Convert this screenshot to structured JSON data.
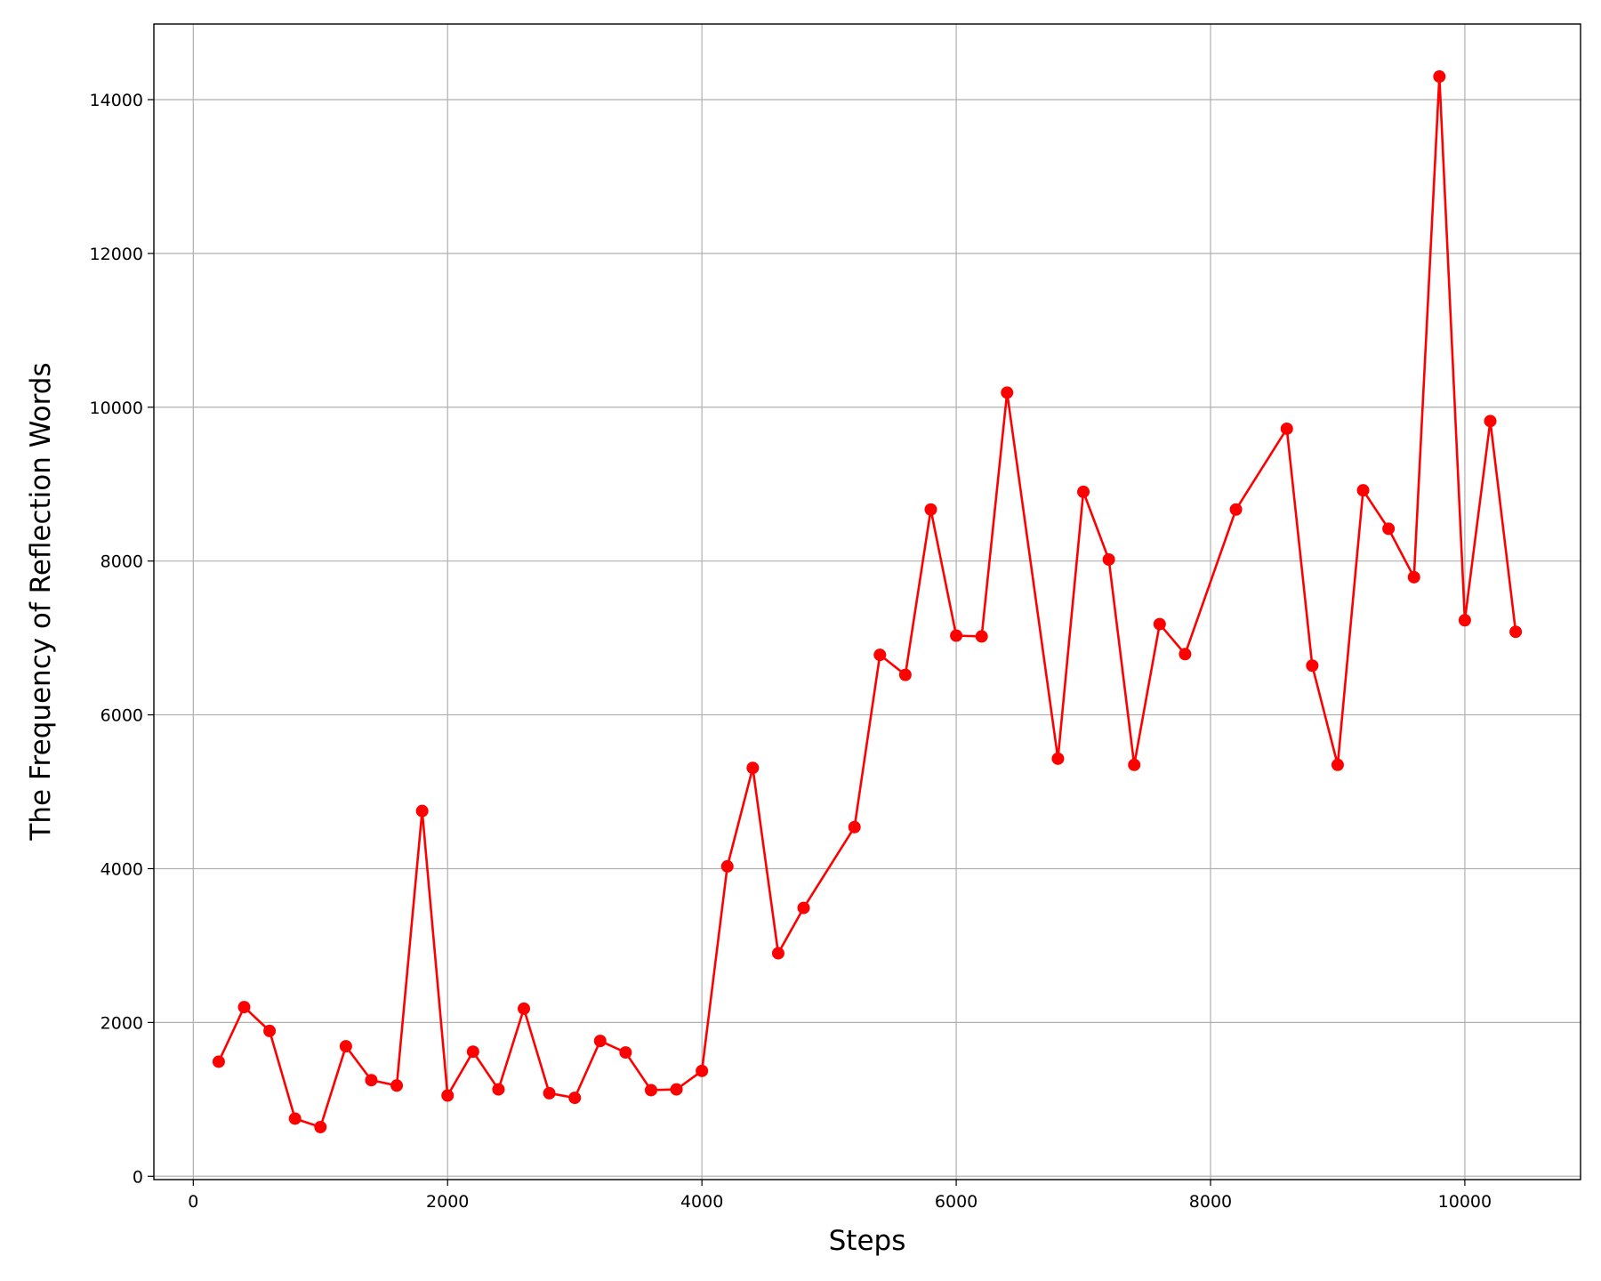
{
  "chart_data": {
    "type": "line",
    "x_label": "Steps",
    "y_label": "The Frequency of Reflection Words",
    "x": [
      200,
      400,
      600,
      800,
      1000,
      1200,
      1400,
      1600,
      1800,
      2000,
      2200,
      2400,
      2600,
      2800,
      3000,
      3200,
      3400,
      3600,
      3800,
      4000,
      4200,
      4400,
      4600,
      4800,
      5200,
      5400,
      5600,
      5800,
      6000,
      6200,
      6400,
      6800,
      7000,
      7200,
      7400,
      7600,
      7800,
      8200,
      8600,
      8800,
      9000,
      9200,
      9400,
      9600,
      9800,
      10000,
      10200,
      10400
    ],
    "series": [
      {
        "color": "#ff0000",
        "values": [
          1490,
          2200,
          1890,
          750,
          640,
          1690,
          1250,
          1180,
          4750,
          1050,
          1620,
          1130,
          2180,
          1080,
          1020,
          1760,
          1610,
          1120,
          1130,
          1370,
          4030,
          5310,
          2900,
          3490,
          4540,
          6780,
          6520,
          8670,
          7030,
          7020,
          10190,
          5430,
          8900,
          8020,
          5350,
          7180,
          6790,
          8670,
          9720,
          6640,
          5350,
          8920,
          8420,
          7790,
          14300,
          7230,
          9820,
          7080
        ]
      }
    ],
    "xlim": [
      -310,
      10910
    ],
    "ylim": [
      -43,
      14983
    ],
    "xticks": [
      0,
      2000,
      4000,
      6000,
      8000,
      10000
    ],
    "yticks": [
      0,
      2000,
      4000,
      6000,
      8000,
      10000,
      12000,
      14000
    ],
    "grid": true
  }
}
